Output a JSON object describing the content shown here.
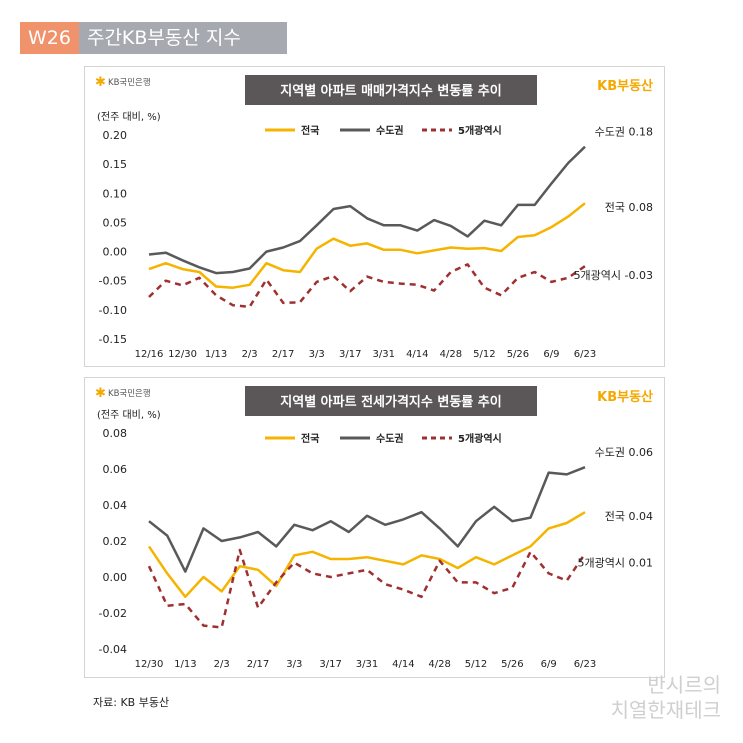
{
  "header": {
    "week": "W26",
    "title": "주간KB부동산 지수"
  },
  "source": "자료: KB 부동산",
  "watermark": {
    "line1": "반시르의",
    "line2": "치열한재테크"
  },
  "colors": {
    "nationwide": "#f5b400",
    "capital": "#595959",
    "five_metro": "#a03030",
    "title_bg": "#5b5657",
    "kb_logo": "#f5a800"
  },
  "chart_data": [
    {
      "type": "line",
      "title": "지역별 아파트 매매가격지수 변동률 추이",
      "bank_logo": "KB국민은행",
      "brand_logo": "KB부동산",
      "ylabel": "(전주 대비, %)",
      "ylim": [
        -0.15,
        0.2
      ],
      "yticks": [
        -0.15,
        -0.1,
        -0.05,
        0.0,
        0.05,
        0.1,
        0.15,
        0.2
      ],
      "ytick_labels": [
        "-0.15",
        "-0.10",
        "-0.05",
        "0.00",
        "0.05",
        "0.10",
        "0.15",
        "0.20"
      ],
      "tick_labels": [
        "12/16",
        "12/30",
        "1/13",
        "2/3",
        "2/17",
        "3/3",
        "3/17",
        "3/31",
        "4/14",
        "4/28",
        "5/12",
        "5/26",
        "6/9",
        "6/23"
      ],
      "series": [
        {
          "name": "전국",
          "key": "nationwide",
          "end_label": "전국 0.08",
          "values": [
            -0.03,
            -0.02,
            -0.03,
            -0.035,
            -0.06,
            -0.062,
            -0.057,
            -0.02,
            -0.032,
            -0.035,
            0.005,
            0.022,
            0.01,
            0.014,
            0.003,
            0.003,
            -0.003,
            0.002,
            0.007,
            0.005,
            0.006,
            0.001,
            0.025,
            0.028,
            0.042,
            0.06,
            0.083
          ]
        },
        {
          "name": "수도권",
          "key": "capital",
          "end_label": "수도권 0.18",
          "values": [
            -0.005,
            -0.002,
            -0.015,
            -0.027,
            -0.037,
            -0.035,
            -0.029,
            0.0,
            0.007,
            0.018,
            0.045,
            0.073,
            0.078,
            0.057,
            0.045,
            0.045,
            0.036,
            0.054,
            0.044,
            0.026,
            0.053,
            0.045,
            0.08,
            0.08,
            0.117,
            0.152,
            0.18
          ]
        },
        {
          "name": "5개광역시",
          "key": "five_metro",
          "end_label": "5개광역시 -0.03",
          "values": [
            -0.078,
            -0.05,
            -0.058,
            -0.045,
            -0.075,
            -0.092,
            -0.095,
            -0.048,
            -0.088,
            -0.087,
            -0.052,
            -0.042,
            -0.068,
            -0.043,
            -0.052,
            -0.055,
            -0.057,
            -0.067,
            -0.035,
            -0.022,
            -0.062,
            -0.075,
            -0.045,
            -0.035,
            -0.052,
            -0.045,
            -0.025
          ]
        }
      ]
    },
    {
      "type": "line",
      "title": "지역별 아파트 전세가격지수 변동률 추이",
      "bank_logo": "KB국민은행",
      "brand_logo": "KB부동산",
      "ylabel": "(전주 대비, %)",
      "ylim": [
        -0.04,
        0.08
      ],
      "yticks": [
        -0.04,
        -0.02,
        0.0,
        0.02,
        0.04,
        0.06,
        0.08
      ],
      "ytick_labels": [
        "-0.04",
        "-0.02",
        "0.00",
        "0.02",
        "0.04",
        "0.06",
        "0.08"
      ],
      "tick_labels": [
        "12/30",
        "1/13",
        "2/3",
        "2/17",
        "3/3",
        "3/17",
        "3/31",
        "4/14",
        "4/28",
        "5/12",
        "5/26",
        "6/9",
        "6/23"
      ],
      "series": [
        {
          "name": "전국",
          "key": "nationwide",
          "end_label": "전국 0.04",
          "values": [
            0.017,
            0.002,
            -0.011,
            0.0,
            -0.008,
            0.006,
            0.004,
            -0.005,
            0.012,
            0.014,
            0.01,
            0.01,
            0.011,
            0.009,
            0.007,
            0.012,
            0.01,
            0.005,
            0.011,
            0.007,
            0.012,
            0.017,
            0.027,
            0.03,
            0.036
          ]
        },
        {
          "name": "수도권",
          "key": "capital",
          "end_label": "수도권 0.06",
          "values": [
            0.031,
            0.023,
            0.003,
            0.027,
            0.02,
            0.022,
            0.025,
            0.017,
            0.029,
            0.026,
            0.031,
            0.025,
            0.034,
            0.029,
            0.032,
            0.036,
            0.027,
            0.017,
            0.031,
            0.039,
            0.031,
            0.033,
            0.058,
            0.057,
            0.061
          ]
        },
        {
          "name": "5개광역시",
          "key": "five_metro",
          "end_label": "5개광역시 0.01",
          "values": [
            0.006,
            -0.016,
            -0.015,
            -0.027,
            -0.028,
            0.015,
            -0.017,
            -0.003,
            0.008,
            0.002,
            0.0,
            0.002,
            0.004,
            -0.004,
            -0.007,
            -0.011,
            0.009,
            -0.003,
            -0.003,
            -0.009,
            -0.006,
            0.014,
            0.002,
            -0.002,
            0.013
          ]
        }
      ]
    }
  ]
}
